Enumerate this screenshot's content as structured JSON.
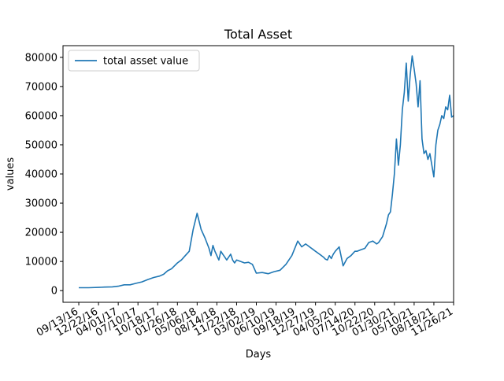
{
  "chart_data": {
    "type": "line",
    "title": "Total Asset",
    "xlabel": "Days",
    "ylabel": "values",
    "legend": {
      "position": "top-left",
      "entries": [
        "total asset value"
      ]
    },
    "grid": false,
    "colors": {
      "series": "#1f77b4",
      "axes": "#000000",
      "background": "#ffffff"
    },
    "x_ticks": [
      "09/13/16",
      "12/22/16",
      "04/01/17",
      "07/10/17",
      "10/18/17",
      "01/26/18",
      "05/06/18",
      "08/14/18",
      "11/22/18",
      "03/02/19",
      "06/10/19",
      "09/18/19",
      "12/27/19",
      "04/05/20",
      "07/14/20",
      "10/22/20",
      "01/30/21",
      "05/10/21",
      "08/18/21",
      "11/26/21"
    ],
    "xlim": [
      -8,
      190
    ],
    "y_ticks": [
      "0",
      "10000",
      "20000",
      "30000",
      "40000",
      "50000",
      "60000",
      "70000",
      "80000"
    ],
    "ylim": [
      -4000,
      84000
    ],
    "series": [
      {
        "name": "total asset value",
        "x": [
          0,
          5,
          10,
          13,
          17,
          20,
          23,
          26,
          29,
          32,
          35,
          38,
          41,
          43,
          45,
          47,
          50,
          52,
          54,
          56,
          58,
          60,
          62,
          64,
          66,
          67,
          68,
          69,
          70,
          71,
          72,
          73,
          74,
          75,
          76,
          77,
          78,
          79,
          80,
          82,
          84,
          86,
          88,
          90,
          93,
          96,
          99,
          102,
          105,
          108,
          111,
          113,
          115,
          117,
          119,
          120,
          122,
          123,
          124,
          125,
          126,
          127,
          128,
          129,
          130,
          132,
          134,
          136,
          138,
          140,
          141,
          143,
          145,
          147,
          149,
          151,
          152,
          154,
          156,
          157,
          158,
          159,
          160,
          161,
          162,
          163,
          164,
          165,
          166,
          167,
          168,
          169,
          170,
          171,
          172,
          173,
          174,
          175,
          176,
          177,
          178,
          179,
          180,
          181,
          182,
          183,
          184,
          185,
          186,
          187,
          188,
          189,
          190
        ],
        "y": [
          1000,
          1000,
          1100,
          1200,
          1300,
          1500,
          2000,
          2000,
          2500,
          3000,
          3800,
          4500,
          5000,
          5600,
          6800,
          7500,
          9500,
          10500,
          12000,
          13500,
          21000,
          26500,
          21000,
          18000,
          14500,
          12000,
          15500,
          13500,
          12000,
          10500,
          13500,
          12500,
          11500,
          10500,
          11500,
          12500,
          10500,
          9500,
          10500,
          10000,
          9500,
          9700,
          9000,
          6000,
          6200,
          5800,
          6500,
          7000,
          9000,
          12000,
          17000,
          15000,
          16000,
          15000,
          14000,
          13500,
          12500,
          12000,
          11500,
          10800,
          10500,
          12000,
          11000,
          12500,
          13500,
          15000,
          8500,
          11000,
          12000,
          13500,
          13500,
          14000,
          14500,
          16500,
          17000,
          16000,
          16500,
          18500,
          23000,
          26000,
          27000,
          33000,
          40000,
          52000,
          43000,
          50000,
          62000,
          68000,
          78000,
          65000,
          74000,
          80500,
          76000,
          71000,
          63000,
          72000,
          52000,
          47000,
          48000,
          45000,
          47000,
          43000,
          39000,
          50000,
          55000,
          57000,
          60000,
          59000,
          63000,
          62000,
          67000,
          59500,
          60000
        ]
      }
    ]
  }
}
